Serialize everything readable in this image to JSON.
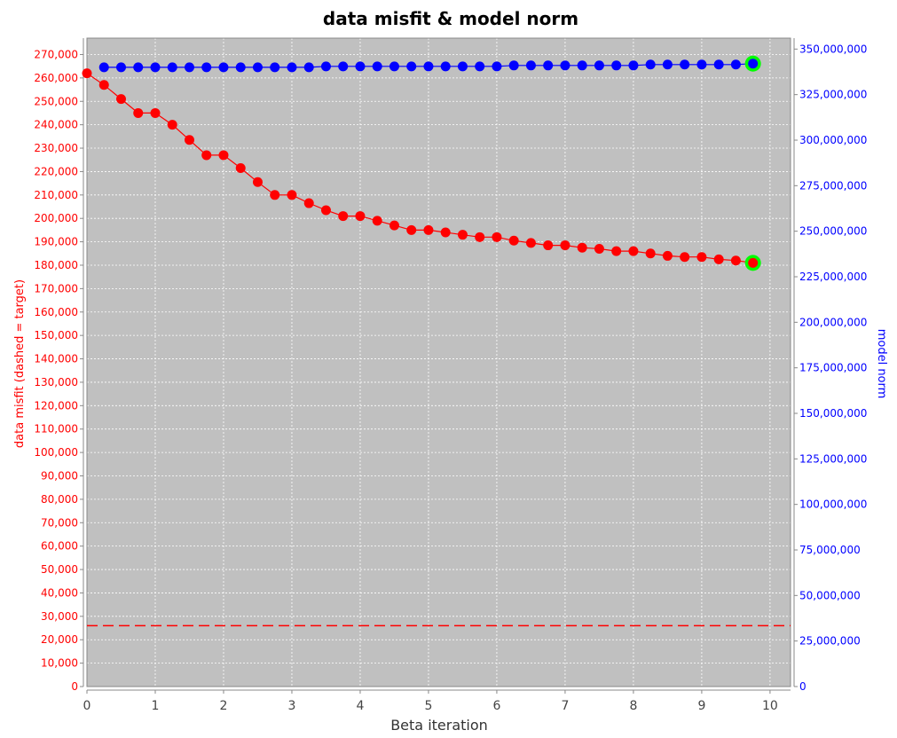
{
  "chart_data": {
    "type": "line",
    "title": "data misfit & model norm",
    "xlabel": "Beta iteration",
    "ylabel_left": "data misfit (dashed = target)",
    "ylabel_right": "model norm",
    "xlim": [
      0,
      10.3
    ],
    "ylim_left": [
      0,
      277000
    ],
    "ylim_right": [
      0,
      356000000
    ],
    "x_ticks": [
      0,
      1,
      2,
      3,
      4,
      5,
      6,
      7,
      8,
      9,
      10
    ],
    "y_left_ticks": [
      0,
      10000,
      20000,
      30000,
      40000,
      50000,
      60000,
      70000,
      80000,
      90000,
      100000,
      110000,
      120000,
      130000,
      140000,
      150000,
      160000,
      170000,
      180000,
      190000,
      200000,
      210000,
      220000,
      230000,
      240000,
      250000,
      260000,
      270000
    ],
    "y_right_ticks": [
      0,
      25000000,
      50000000,
      75000000,
      100000000,
      125000000,
      150000000,
      175000000,
      200000000,
      225000000,
      250000000,
      275000000,
      300000000,
      325000000,
      350000000
    ],
    "grid": true,
    "target_misfit": 26000,
    "colors": {
      "plot_bg": "#c0c0c0",
      "misfit": "#ff0000",
      "model_norm": "#0000ff",
      "highlight": "#00ff00",
      "grid": "#ffffff"
    },
    "series": [
      {
        "axis": "left",
        "x": [
          0,
          0.25,
          0.5,
          0.75,
          1,
          1.25,
          1.5,
          1.75,
          2,
          2.25,
          2.5,
          2.75,
          3,
          3.25,
          3.5,
          3.75,
          4,
          4.25,
          4.5,
          4.75,
          5,
          5.25,
          5.5,
          5.75,
          6,
          6.25,
          6.5,
          6.75,
          7,
          7.25,
          7.5,
          7.75,
          8,
          8.25,
          8.5,
          8.75,
          9,
          9.25,
          9.5,
          9.75
        ],
        "values": [
          262000,
          257000,
          251000,
          245000,
          245000,
          240000,
          233500,
          227000,
          227000,
          221500,
          215500,
          210000,
          210000,
          206500,
          203500,
          201000,
          201000,
          199000,
          197000,
          195000,
          195000,
          194000,
          193000,
          192000,
          192000,
          190500,
          189500,
          188500,
          188500,
          187500,
          187000,
          186000,
          186000,
          185000,
          184000,
          183500,
          183500,
          182500,
          182000,
          181000
        ]
      },
      {
        "axis": "right",
        "x": [
          0.25,
          0.5,
          0.75,
          1,
          1.25,
          1.5,
          1.75,
          2,
          2.25,
          2.5,
          2.75,
          3,
          3.25,
          3.5,
          3.75,
          4,
          4.25,
          4.5,
          4.75,
          5,
          5.25,
          5.5,
          5.75,
          6,
          6.25,
          6.5,
          6.75,
          7,
          7.25,
          7.5,
          7.75,
          8,
          8.25,
          8.5,
          8.75,
          9,
          9.25,
          9.5,
          9.75
        ],
        "values": [
          340000000,
          340000000,
          340000000,
          340000000,
          340000000,
          340000000,
          340000000,
          340000000,
          340000000,
          340000000,
          340000000,
          340000000,
          340000000,
          340500000,
          340500000,
          340500000,
          340500000,
          340500000,
          340500000,
          340500000,
          340500000,
          340500000,
          340500000,
          340500000,
          341000000,
          341000000,
          341000000,
          341000000,
          341000000,
          341000000,
          341000000,
          341000000,
          341500000,
          341500000,
          341500000,
          341500000,
          341500000,
          341500000,
          342000000
        ]
      }
    ],
    "highlight_points": [
      {
        "axis": "left",
        "x": 9.75,
        "y": 181000
      },
      {
        "axis": "right",
        "x": 9.75,
        "y": 342000000
      }
    ]
  }
}
